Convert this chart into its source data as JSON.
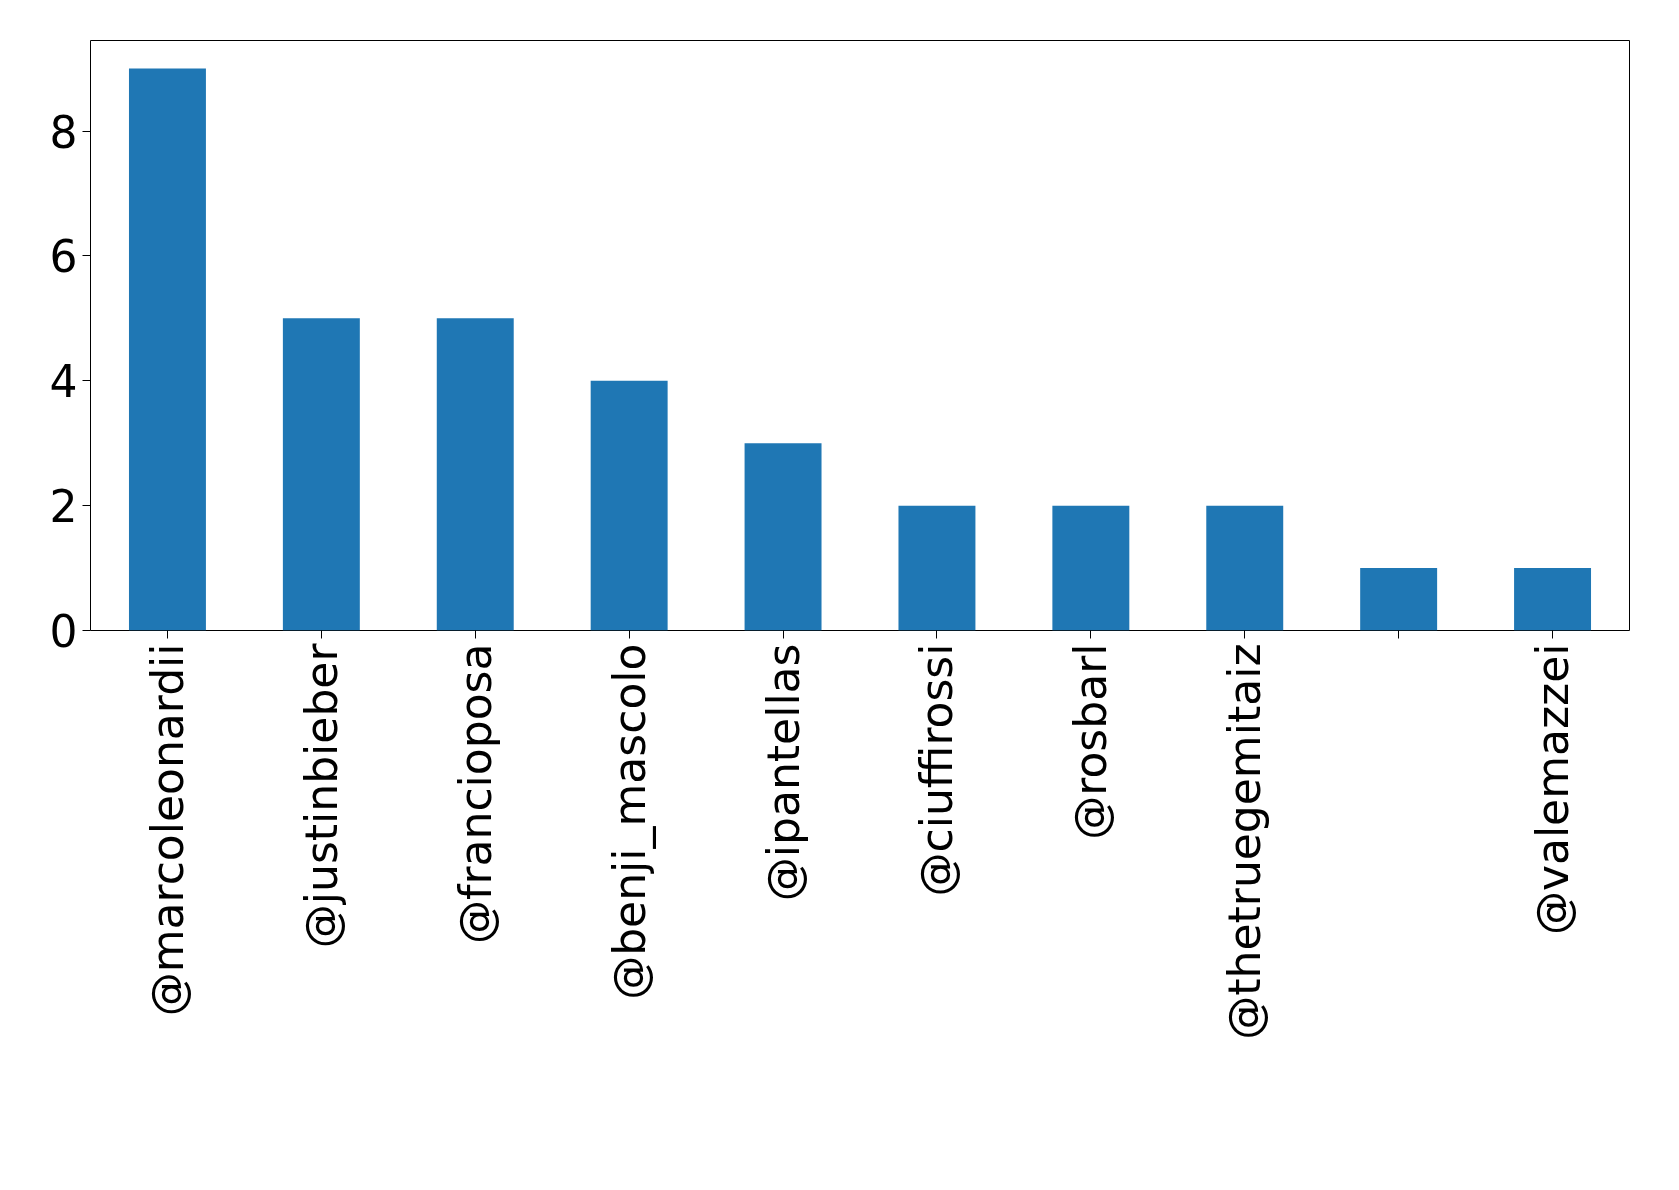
{
  "chart_data": {
    "type": "bar",
    "categories": [
      "@marcoleonardii",
      "@justinbieber",
      "@francioposa",
      "@benji_mascolo",
      "@ipantellas",
      "@ciuffirossi",
      "@rosbarl",
      "@thetruegemitaiz",
      null,
      "@valemazzei"
    ],
    "values": [
      9,
      5,
      5,
      4,
      3,
      2,
      2,
      2,
      1,
      1
    ],
    "color": "#1f77b4",
    "ylim": [
      0,
      9.45
    ],
    "yticks": [
      0,
      2,
      4,
      6,
      8
    ],
    "grid": false
  }
}
